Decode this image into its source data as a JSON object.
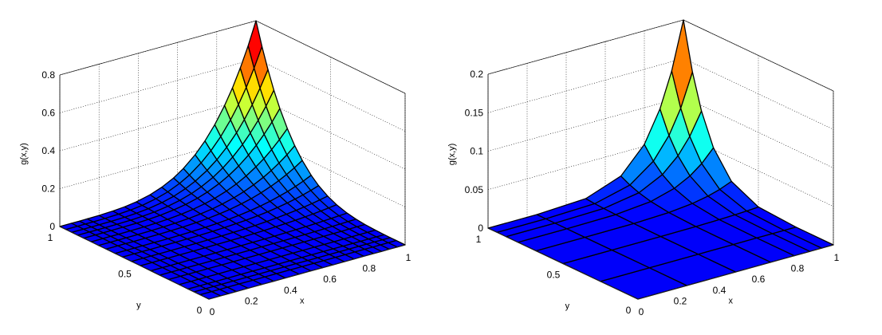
{
  "chart_data": [
    {
      "type": "surface",
      "title": "",
      "xlabel": "x",
      "ylabel": "y",
      "zlabel": "g(x,y)",
      "xlim": [
        0,
        1
      ],
      "ylim": [
        0,
        1
      ],
      "zlim": [
        0,
        0.8
      ],
      "xticks": [
        "0",
        "0.2",
        "0.4",
        "0.6",
        "0.8",
        "1"
      ],
      "yticks": [
        "0",
        "0.5",
        "1"
      ],
      "zticks": [
        "0",
        "0.2",
        "0.4",
        "0.6",
        "0.8"
      ],
      "grid": true,
      "colormap": "jet",
      "peak": {
        "x": 1,
        "y": 1,
        "z": 0.8
      },
      "surface": "g(x,y) = 0.8 * (x*y)^4",
      "grid_lines_x": [
        0.06,
        0.1,
        0.14,
        0.2,
        0.27,
        0.33,
        0.39,
        0.46,
        0.52,
        0.58,
        0.63,
        0.69,
        0.74,
        0.79,
        0.84,
        0.88,
        0.92,
        0.96
      ],
      "grid_lines_y": [
        0.06,
        0.1,
        0.14,
        0.2,
        0.27,
        0.33,
        0.39,
        0.46,
        0.52,
        0.58,
        0.63,
        0.69,
        0.74,
        0.79,
        0.84,
        0.88,
        0.92,
        0.96
      ]
    },
    {
      "type": "surface",
      "title": "",
      "xlabel": "x",
      "ylabel": "y",
      "zlabel": "g(x,y)",
      "xlim": [
        0,
        1
      ],
      "ylim": [
        0,
        1
      ],
      "zlim": [
        0,
        0.2
      ],
      "xticks": [
        "0",
        "0.2",
        "0.4",
        "0.6",
        "0.8",
        "1"
      ],
      "yticks": [
        "0",
        "0.5",
        "1"
      ],
      "zticks": [
        "0",
        "0.05",
        "0.1",
        "0.15",
        "0.2"
      ],
      "grid": true,
      "colormap": "jet",
      "peak": {
        "x": 1,
        "y": 1,
        "z": 0.2
      },
      "surface": "g(x,y) = 0.2 * (x*y)^6",
      "grid_lines_x": [
        0.25,
        0.5,
        0.68,
        0.8,
        0.88,
        0.94
      ],
      "grid_lines_y": [
        0.25,
        0.5,
        0.68,
        0.8,
        0.88,
        0.94
      ]
    }
  ]
}
